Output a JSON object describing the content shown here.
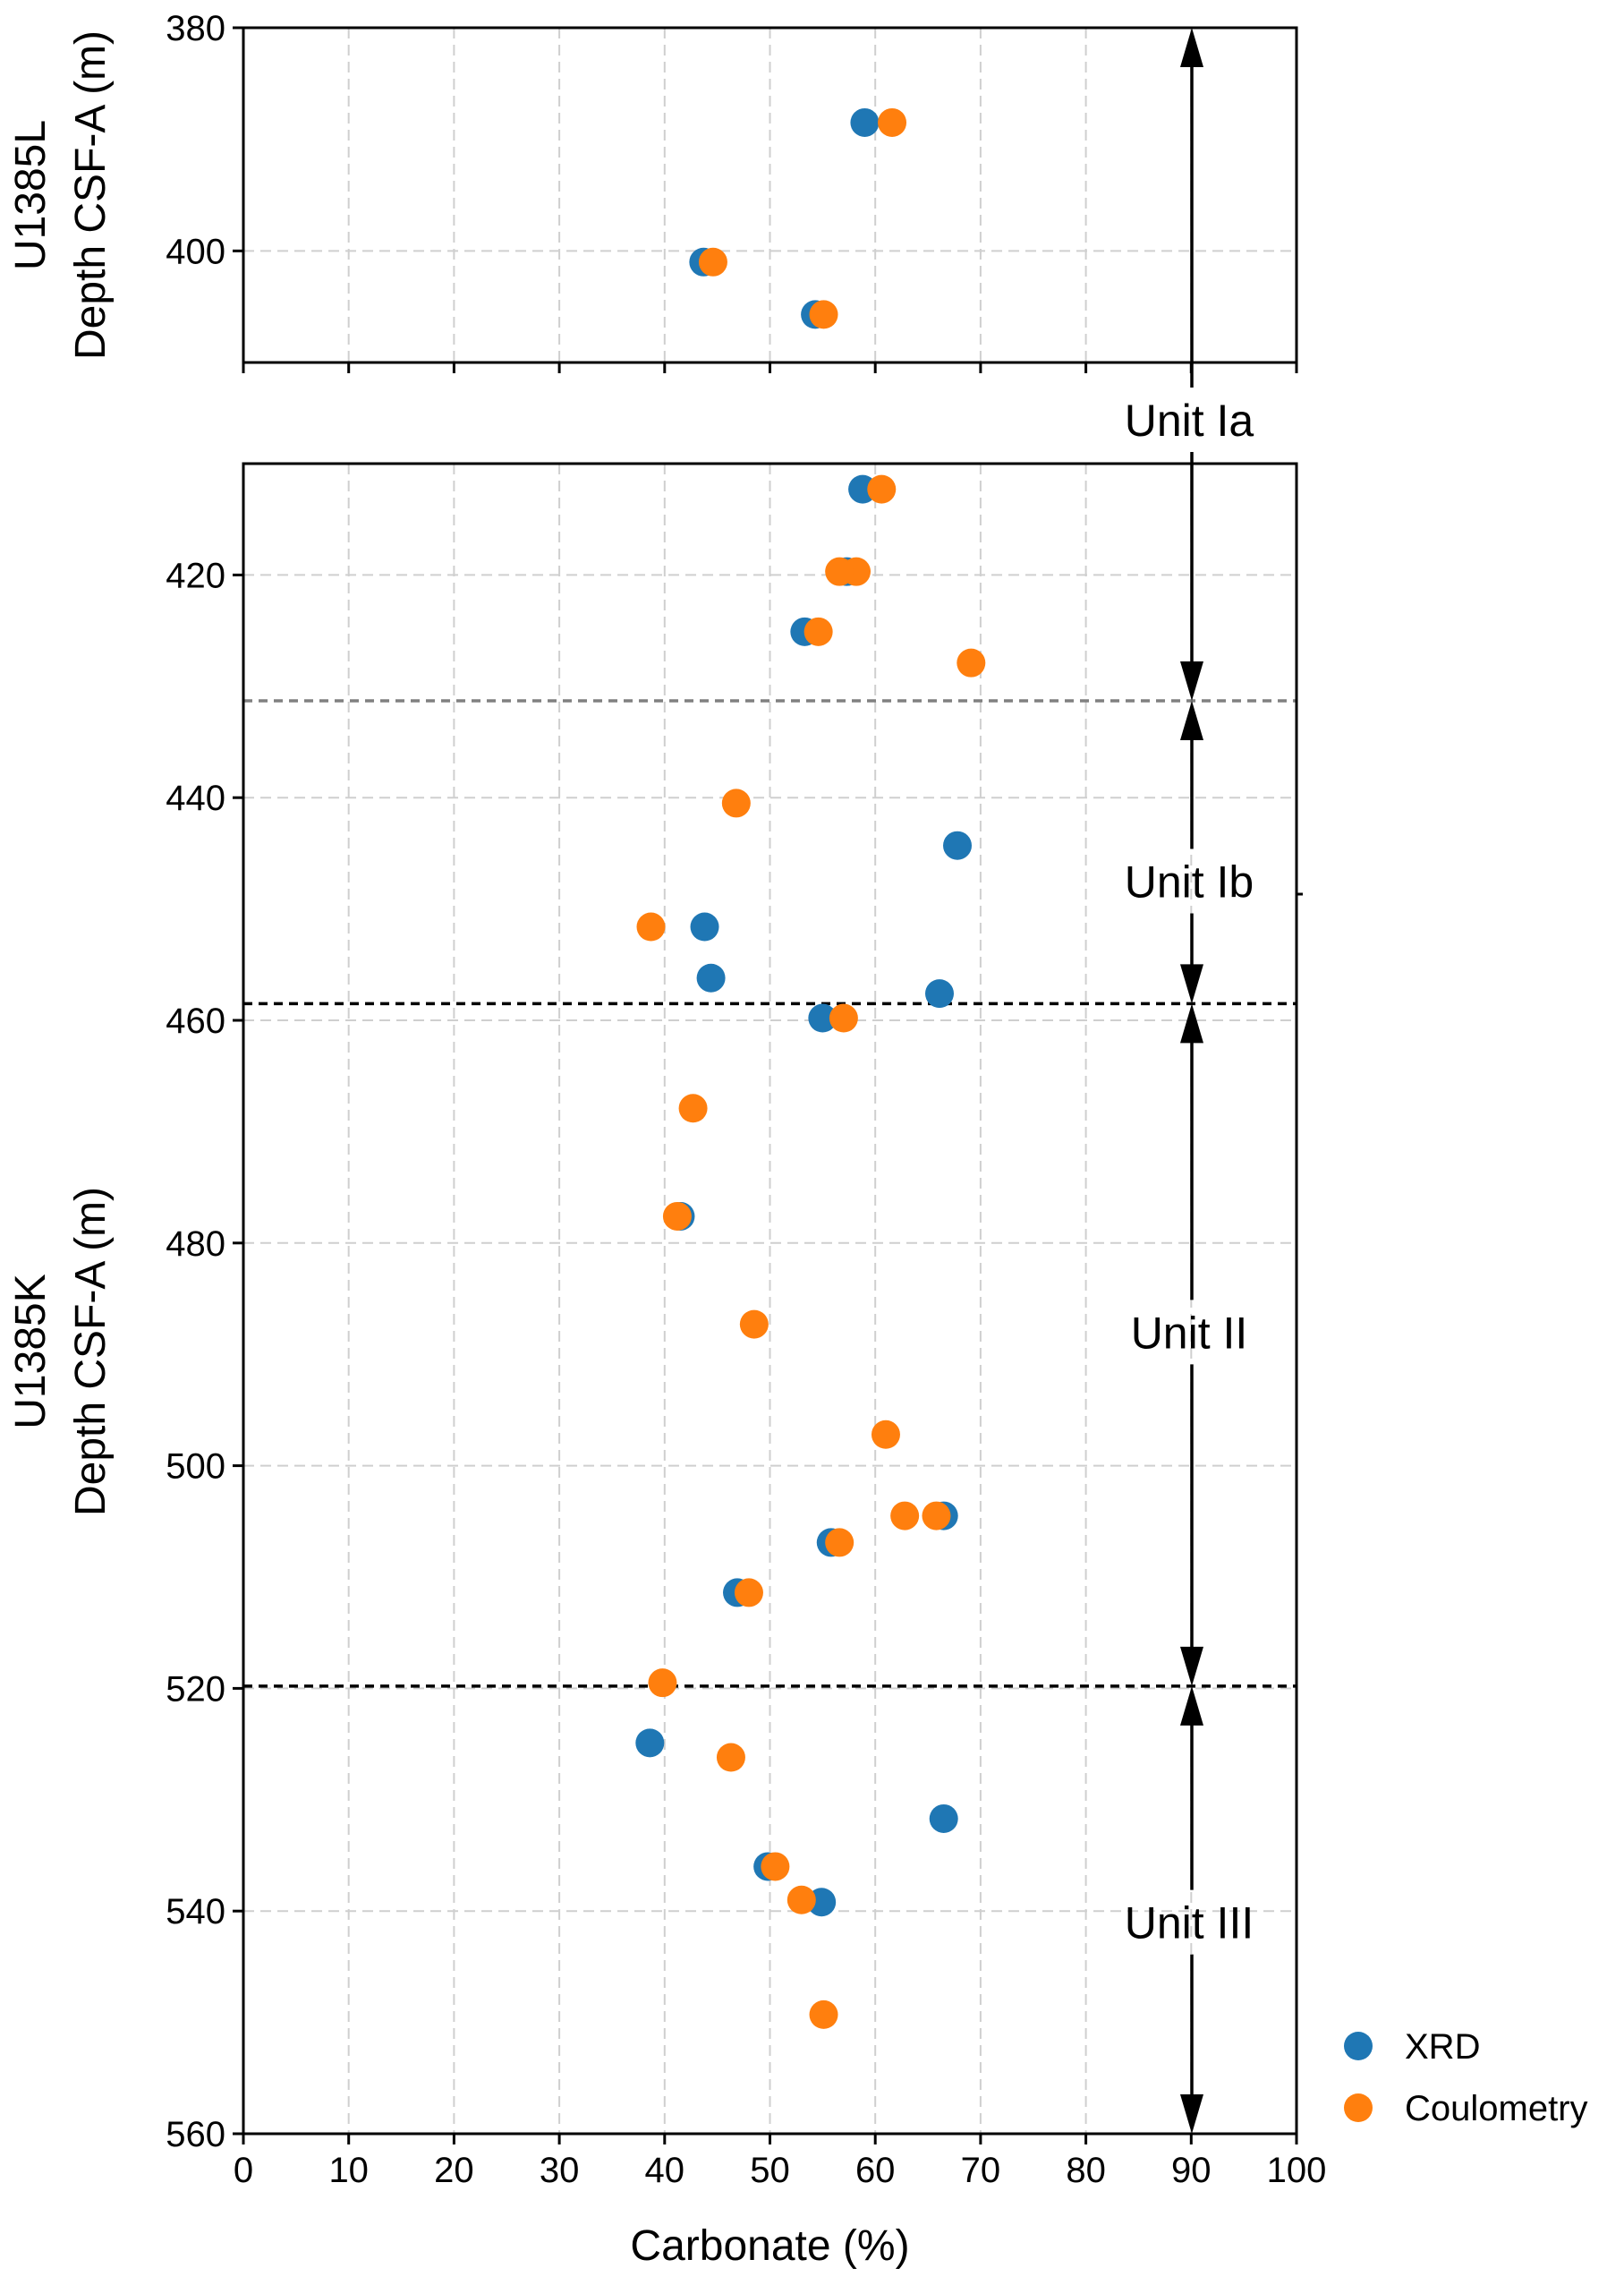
{
  "chart_data": {
    "type": "scatter",
    "x_axis": {
      "label": "Carbonate (%)",
      "range": [
        0,
        100
      ],
      "ticks": [
        "0",
        "10",
        "20",
        "30",
        "40",
        "50",
        "60",
        "70",
        "80",
        "90",
        "100"
      ],
      "grid": true
    },
    "panels": [
      {
        "id": "U1385L",
        "ylabel_line1": "U1385L",
        "ylabel_line2": "Depth CSF-A (m)",
        "y_range": [
          380,
          410
        ],
        "y_inverted": true,
        "y_ticks": [
          "380",
          "400"
        ]
      },
      {
        "id": "U1385K",
        "ylabel_line1": "U1385K",
        "ylabel_line2": "Depth CSF-A (m)",
        "y_range": [
          410,
          560
        ],
        "y_inverted": true,
        "y_ticks": [
          "420",
          "440",
          "460",
          "480",
          "500",
          "520",
          "540",
          "560"
        ]
      }
    ],
    "series": [
      {
        "name": "XRD",
        "color": "#1f77b4",
        "points": [
          {
            "panel": 0,
            "x": 59.0,
            "y": 388.5
          },
          {
            "panel": 0,
            "x": 43.7,
            "y": 401.0
          },
          {
            "panel": 0,
            "x": 54.3,
            "y": 405.7
          },
          {
            "panel": 1,
            "x": 58.8,
            "y": 412.3
          },
          {
            "panel": 1,
            "x": 57.3,
            "y": 419.7
          },
          {
            "panel": 1,
            "x": 53.3,
            "y": 425.1
          },
          {
            "panel": 1,
            "x": 67.8,
            "y": 444.3
          },
          {
            "panel": 1,
            "x": 43.8,
            "y": 451.6
          },
          {
            "panel": 1,
            "x": 44.4,
            "y": 456.2
          },
          {
            "panel": 1,
            "x": 66.1,
            "y": 457.6
          },
          {
            "panel": 1,
            "x": 55.0,
            "y": 459.8
          },
          {
            "panel": 1,
            "x": 41.5,
            "y": 477.6
          },
          {
            "panel": 1,
            "x": 66.5,
            "y": 504.5
          },
          {
            "panel": 1,
            "x": 55.8,
            "y": 506.9
          },
          {
            "panel": 1,
            "x": 46.9,
            "y": 511.4
          },
          {
            "panel": 1,
            "x": 38.6,
            "y": 524.9
          },
          {
            "panel": 1,
            "x": 66.5,
            "y": 531.7
          },
          {
            "panel": 1,
            "x": 49.8,
            "y": 536.0
          },
          {
            "panel": 1,
            "x": 54.9,
            "y": 539.2
          }
        ]
      },
      {
        "name": "Coulometry",
        "color": "#ff7f0e",
        "points": [
          {
            "panel": 0,
            "x": 61.6,
            "y": 388.5
          },
          {
            "panel": 0,
            "x": 44.6,
            "y": 401.0
          },
          {
            "panel": 0,
            "x": 55.1,
            "y": 405.7
          },
          {
            "panel": 1,
            "x": 60.6,
            "y": 412.3
          },
          {
            "panel": 1,
            "x": 58.2,
            "y": 419.7
          },
          {
            "panel": 1,
            "x": 56.6,
            "y": 419.7
          },
          {
            "panel": 1,
            "x": 54.6,
            "y": 425.1
          },
          {
            "panel": 1,
            "x": 69.1,
            "y": 427.9
          },
          {
            "panel": 1,
            "x": 46.8,
            "y": 440.5
          },
          {
            "panel": 1,
            "x": 38.7,
            "y": 451.6
          },
          {
            "panel": 1,
            "x": 57.0,
            "y": 459.8
          },
          {
            "panel": 1,
            "x": 42.7,
            "y": 467.9
          },
          {
            "panel": 1,
            "x": 41.2,
            "y": 477.6
          },
          {
            "panel": 1,
            "x": 48.5,
            "y": 487.3
          },
          {
            "panel": 1,
            "x": 61.0,
            "y": 497.2
          },
          {
            "panel": 1,
            "x": 62.8,
            "y": 504.5
          },
          {
            "panel": 1,
            "x": 65.8,
            "y": 504.5
          },
          {
            "panel": 1,
            "x": 56.6,
            "y": 506.9
          },
          {
            "panel": 1,
            "x": 48.0,
            "y": 511.4
          },
          {
            "panel": 1,
            "x": 39.8,
            "y": 519.5
          },
          {
            "panel": 1,
            "x": 46.3,
            "y": 526.2
          },
          {
            "panel": 1,
            "x": 50.5,
            "y": 536.0
          },
          {
            "panel": 1,
            "x": 53.0,
            "y": 539.0
          },
          {
            "panel": 1,
            "x": 55.1,
            "y": 549.3
          }
        ]
      }
    ],
    "boundaries": [
      {
        "depth": 431.3,
        "color": "#808080"
      },
      {
        "depth": 458.5,
        "color": "#000000"
      },
      {
        "depth": 519.8,
        "color": "#000000"
      }
    ],
    "units": [
      {
        "label": "Unit Ia",
        "top": 380,
        "bottom": 431.3,
        "label_depth": 0
      },
      {
        "label": "Unit Ib",
        "top": 431.3,
        "bottom": 458.5,
        "label_depth": 447.5
      },
      {
        "label": "Unit II",
        "top": 458.5,
        "bottom": 519.8,
        "label_depth": 488.0
      },
      {
        "label": "Unit III",
        "top": 519.8,
        "bottom": 560,
        "label_depth": 541.0
      }
    ],
    "legend": {
      "placement": "bottom-right",
      "entries": [
        {
          "label": "XRD",
          "color": "#1f77b4"
        },
        {
          "label": "Coulometry",
          "color": "#ff7f0e"
        }
      ]
    }
  }
}
